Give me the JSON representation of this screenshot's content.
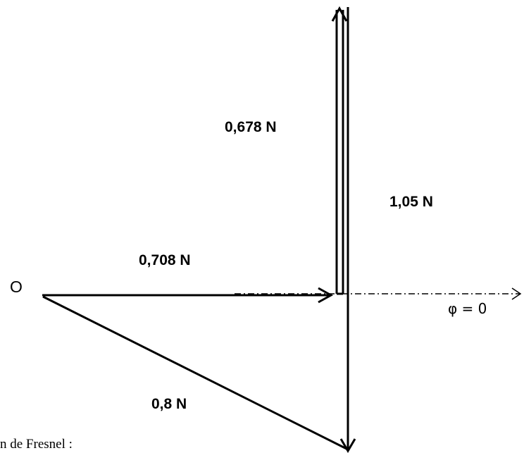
{
  "labels": {
    "origin": "O",
    "v1": "0,708 N",
    "v2": "0,678 N",
    "v3": "1,05 N",
    "result": "0,8 N",
    "phase_ref": "φ = 0",
    "caption": "n de Fresnel :"
  },
  "colors": {
    "stroke": "#000000",
    "background": "#ffffff"
  }
}
